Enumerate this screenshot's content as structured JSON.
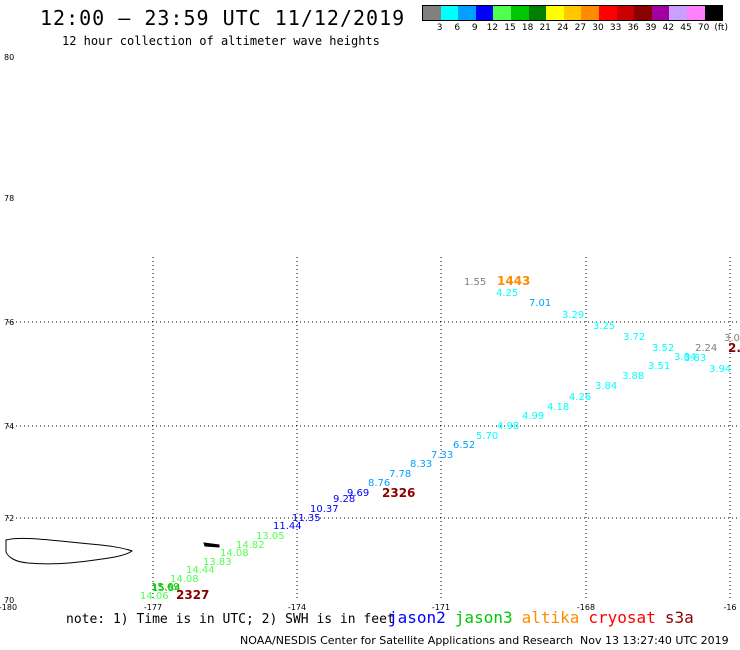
{
  "header": {
    "title": "12:00 – 23:59 UTC 11/12/2019",
    "subtitle": "12 hour collection of altimeter wave heights"
  },
  "legend": {
    "unit": "(ft)",
    "colors": [
      "#808080",
      "#00ffff",
      "#00a0ff",
      "#0000ff",
      "#50ff50",
      "#00c800",
      "#008000",
      "#ffff00",
      "#ffc800",
      "#ff8c00",
      "#ff0000",
      "#c80000",
      "#8b0000",
      "#a000a0",
      "#c8a0ff",
      "#ff80ff",
      "#000000"
    ],
    "labels": [
      "3",
      "6",
      "9",
      "12",
      "15",
      "18",
      "21",
      "24",
      "27",
      "30",
      "33",
      "36",
      "39",
      "42",
      "45",
      "70"
    ]
  },
  "axes": {
    "lat_labels": [
      "80",
      "78",
      "76",
      "74",
      "72",
      "70"
    ],
    "lon_labels": [
      "-180",
      "-177",
      "-174",
      "-171",
      "-168",
      "-16"
    ]
  },
  "pass_labels": [
    {
      "text": "1443",
      "color": "#ff8c00"
    },
    {
      "text": "2326",
      "color": "#8b0000"
    },
    {
      "text": "2327",
      "color": "#8b0000"
    },
    {
      "text": "2.",
      "color": "#8b0000"
    }
  ],
  "wave_heights": [
    {
      "text": "1.55",
      "color": "#808080"
    },
    {
      "text": "4.25",
      "color": "#00ffff"
    },
    {
      "text": "7.01",
      "color": "#00a0ff"
    },
    {
      "text": "3.29",
      "color": "#00ffff"
    },
    {
      "text": "3.25",
      "color": "#00ffff"
    },
    {
      "text": "3.72",
      "color": "#00ffff"
    },
    {
      "text": "3.52",
      "color": "#00ffff"
    },
    {
      "text": "2.24",
      "color": "#808080"
    },
    {
      "text": "3.0",
      "color": "#808080"
    },
    {
      "text": "3.84",
      "color": "#00ffff"
    },
    {
      "text": "3.83",
      "color": "#00ffff"
    },
    {
      "text": "3.51",
      "color": "#00ffff"
    },
    {
      "text": "3.94",
      "color": "#00ffff"
    },
    {
      "text": "3.88",
      "color": "#00ffff"
    },
    {
      "text": "3.84",
      "color": "#00ffff"
    },
    {
      "text": "4.26",
      "color": "#00ffff"
    },
    {
      "text": "4.18",
      "color": "#00ffff"
    },
    {
      "text": "4.99",
      "color": "#00ffff"
    },
    {
      "text": "4.98",
      "color": "#00ffff"
    },
    {
      "text": "5.70",
      "color": "#00ffff"
    },
    {
      "text": "6.52",
      "color": "#00a0ff"
    },
    {
      "text": "7.33",
      "color": "#00a0ff"
    },
    {
      "text": "8.33",
      "color": "#00a0ff"
    },
    {
      "text": "7.78",
      "color": "#00a0ff"
    },
    {
      "text": "8.76",
      "color": "#00a0ff"
    },
    {
      "text": "9.69",
      "color": "#0000ff"
    },
    {
      "text": "9.28",
      "color": "#0000ff"
    },
    {
      "text": "10.37",
      "color": "#0000ff"
    },
    {
      "text": "11.35",
      "color": "#0000ff"
    },
    {
      "text": "11.44",
      "color": "#0000ff"
    },
    {
      "text": "13.05",
      "color": "#50ff50"
    },
    {
      "text": "14.82",
      "color": "#50ff50"
    },
    {
      "text": "14.08",
      "color": "#50ff50"
    },
    {
      "text": "13.83",
      "color": "#50ff50"
    },
    {
      "text": "14.44",
      "color": "#50ff50"
    },
    {
      "text": "14.08",
      "color": "#50ff50"
    },
    {
      "text": "15.84",
      "color": "#00c800"
    },
    {
      "text": "15.69",
      "color": "#00c800"
    },
    {
      "text": "14.06",
      "color": "#50ff50"
    }
  ],
  "note": "note: 1) Time is in UTC; 2) SWH is in feet",
  "satellites": [
    {
      "name": "jason2",
      "color": "#0000ff"
    },
    {
      "name": "jason3",
      "color": "#00c800"
    },
    {
      "name": "altika",
      "color": "#ff8c00"
    },
    {
      "name": "cryosat",
      "color": "#ff0000"
    },
    {
      "name": "s3a",
      "color": "#8b0000"
    }
  ],
  "footer": {
    "credit": "NOAA/NESDIS Center for Satellite Applications and Research",
    "timestamp": "Nov 13 13:27:40 UTC 2019"
  }
}
